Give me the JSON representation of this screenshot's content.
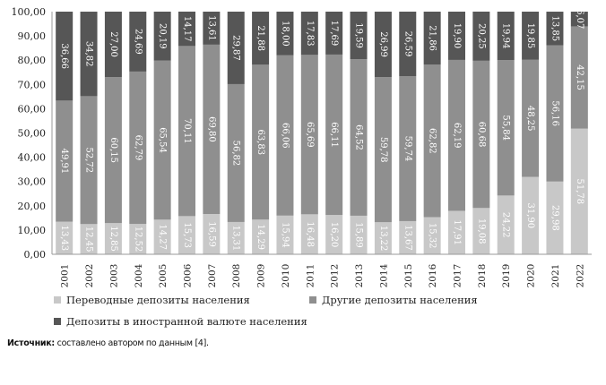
{
  "chart_data": {
    "type": "bar",
    "stacked": true,
    "categories": [
      "2001",
      "2002",
      "2003",
      "2004",
      "2005",
      "2006",
      "2007",
      "2008",
      "2009",
      "2010",
      "2011",
      "2012",
      "2013",
      "2014",
      "2015",
      "2016",
      "2017",
      "2018",
      "2019",
      "2020",
      "2021",
      "2022"
    ],
    "series": [
      {
        "name": "Переводные депозиты населения",
        "color": "#c8c8c8",
        "values": [
          13.43,
          12.45,
          12.85,
          12.52,
          14.27,
          15.73,
          16.59,
          13.31,
          14.29,
          15.94,
          16.48,
          16.2,
          15.89,
          13.22,
          13.67,
          15.32,
          17.91,
          19.08,
          24.22,
          31.9,
          29.98,
          51.78
        ],
        "labels": [
          "13,43",
          "12,45",
          "12,85",
          "12,52",
          "14,27",
          "15,73",
          "16,59",
          "13,31",
          "14,29",
          "15,94",
          "16,48",
          "16,20",
          "15,89",
          "13,22",
          "13,67",
          "15,32",
          "17,91",
          "19,08",
          "24,22",
          "31,90",
          "29,98",
          "51,78"
        ]
      },
      {
        "name": "Другие депозиты населения",
        "color": "#8f8f8f",
        "values": [
          49.91,
          52.72,
          60.15,
          62.79,
          65.54,
          70.11,
          69.8,
          56.82,
          63.83,
          66.06,
          65.69,
          66.11,
          64.52,
          59.78,
          59.74,
          62.82,
          62.19,
          60.68,
          55.84,
          48.25,
          56.16,
          42.15
        ],
        "labels": [
          "49,91",
          "52,72",
          "60,15",
          "62,79",
          "65,54",
          "70,11",
          "69,80",
          "56,82",
          "63,83",
          "66,06",
          "65,69",
          "66,11",
          "64,52",
          "59,78",
          "59,74",
          "62,82",
          "62,19",
          "60,68",
          "55,84",
          "48,25",
          "56,16",
          "42,15"
        ]
      },
      {
        "name": "Депозиты в иностранной валюте населения",
        "color": "#565656",
        "values": [
          36.66,
          34.82,
          27.0,
          24.69,
          20.19,
          14.17,
          13.61,
          29.87,
          21.88,
          18.0,
          17.83,
          17.69,
          19.59,
          26.99,
          26.59,
          21.86,
          19.9,
          20.25,
          19.94,
          19.85,
          13.85,
          6.07
        ],
        "labels": [
          "36,66",
          "34,82",
          "27,00",
          "24,69",
          "20,19",
          "14,17",
          "13,61",
          "29,87",
          "21,88",
          "18,00",
          "17,83",
          "17,69",
          "19,59",
          "26,99",
          "26,59",
          "21,86",
          "19,90",
          "20,25",
          "19,94",
          "19,85",
          "13,85",
          "6,07"
        ]
      }
    ],
    "ylim": [
      0,
      100
    ],
    "yticks": [
      "0,00",
      "10,00",
      "20,00",
      "30,00",
      "40,00",
      "50,00",
      "60,00",
      "70,00",
      "80,00",
      "90,00",
      "100,00"
    ],
    "grid": false,
    "legend_placement": "bottom"
  },
  "source": {
    "label": "Источник:",
    "text": "составлено автором по данным [4]."
  }
}
